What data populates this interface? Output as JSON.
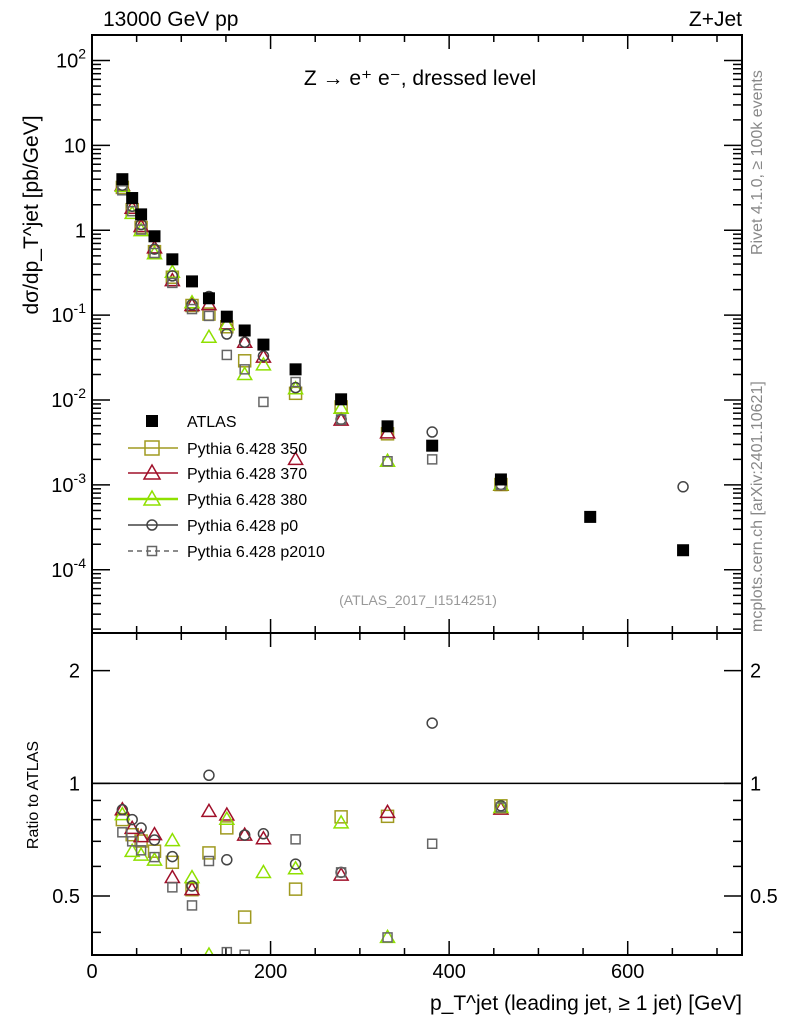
{
  "header": {
    "left": "13000 GeV pp",
    "right": "Z+Jet"
  },
  "side_labels": {
    "rivet": "Rivet 4.1.0, ≥ 100k events",
    "mcplots": "mcplots.cern.ch [arXiv:2401.10621]"
  },
  "chart_data": {
    "type": "scatter",
    "title": "Z → e⁺ e⁻, dressed level",
    "analysis": "(ATLAS_2017_I1514251)",
    "xlabel": "p_T^jet (leading jet, ≥ 1 jet) [GeV]",
    "ylabel": "dσ/dp_T^jet [pb/GeV]",
    "ratio_ylabel": "Ratio to ATLAS",
    "xlim": [
      0,
      728
    ],
    "ylim": [
      1.8e-05,
      200
    ],
    "yscale": "log",
    "ratio_ylim": [
      0.348,
      2.52
    ],
    "ratio_yscale": "log",
    "xticks": [
      "0",
      "200",
      "400",
      "600"
    ],
    "xtick_values": [
      0,
      200,
      400,
      600
    ],
    "yticks": [
      "10^2",
      "10",
      "1",
      "10^-1",
      "10^-2",
      "10^-3",
      "10^-4"
    ],
    "ytick_values": [
      100,
      10,
      1,
      0.1,
      0.01,
      0.001,
      0.0001
    ],
    "ratio_yticks": [
      "2",
      "1",
      "0.5"
    ],
    "ratio_ytick_values": [
      2,
      1,
      0.5
    ],
    "legend_position": "lower-left",
    "x": [
      34,
      45,
      55,
      70,
      90,
      112,
      131,
      151,
      171,
      192,
      228,
      279,
      331,
      381,
      458,
      558,
      662
    ],
    "reference": {
      "name": "ATLAS",
      "values": [
        4.0,
        2.4,
        1.54,
        0.85,
        0.455,
        0.25,
        0.158,
        0.096,
        0.066,
        0.045,
        0.023,
        0.0102,
        0.0049,
        0.0029,
        0.00116,
        0.00042,
        0.00017
      ]
    },
    "series": [
      {
        "name": "Pythia 6.428 350",
        "color": "#a09a20",
        "marker": "square",
        "dash": false,
        "values": [
          3.2,
          1.75,
          1.08,
          0.56,
          0.28,
          0.13,
          0.103,
          0.073,
          0.029,
          null,
          0.012,
          0.0083,
          0.004,
          null,
          0.00101,
          null,
          null
        ]
      },
      {
        "name": "Pythia 6.428 370",
        "color": "#a0102a",
        "marker": "triangle",
        "dash": false,
        "values": [
          3.4,
          1.82,
          1.11,
          0.62,
          0.255,
          0.13,
          0.133,
          0.079,
          0.048,
          0.032,
          0.002,
          0.0058,
          0.0041,
          null,
          0.00099,
          null,
          null
        ]
      },
      {
        "name": "Pythia 6.428 380",
        "color": "#8fe000",
        "marker": "triangle",
        "dash": false,
        "values": [
          3.3,
          1.58,
          0.99,
          0.53,
          0.32,
          0.14,
          0.055,
          0.077,
          0.02,
          0.026,
          0.0136,
          0.008,
          0.0019,
          null,
          0.001,
          null,
          null
        ]
      },
      {
        "name": "Pythia 6.428 p0",
        "color": "#444444",
        "marker": "circle",
        "dash": false,
        "values": [
          3.4,
          1.92,
          1.17,
          0.6,
          0.29,
          0.133,
          0.166,
          0.06,
          0.048,
          0.033,
          0.014,
          0.0059,
          null,
          0.0042,
          0.00101,
          null,
          0.00095
        ]
      },
      {
        "name": "Pythia 6.428 p2010",
        "color": "#666666",
        "marker": "square-small",
        "dash": true,
        "values": [
          2.96,
          1.68,
          1.02,
          0.54,
          0.24,
          0.118,
          0.098,
          0.034,
          0.023,
          0.0095,
          0.0163,
          0.0059,
          0.0019,
          0.002,
          0.001,
          null,
          null
        ]
      }
    ]
  }
}
